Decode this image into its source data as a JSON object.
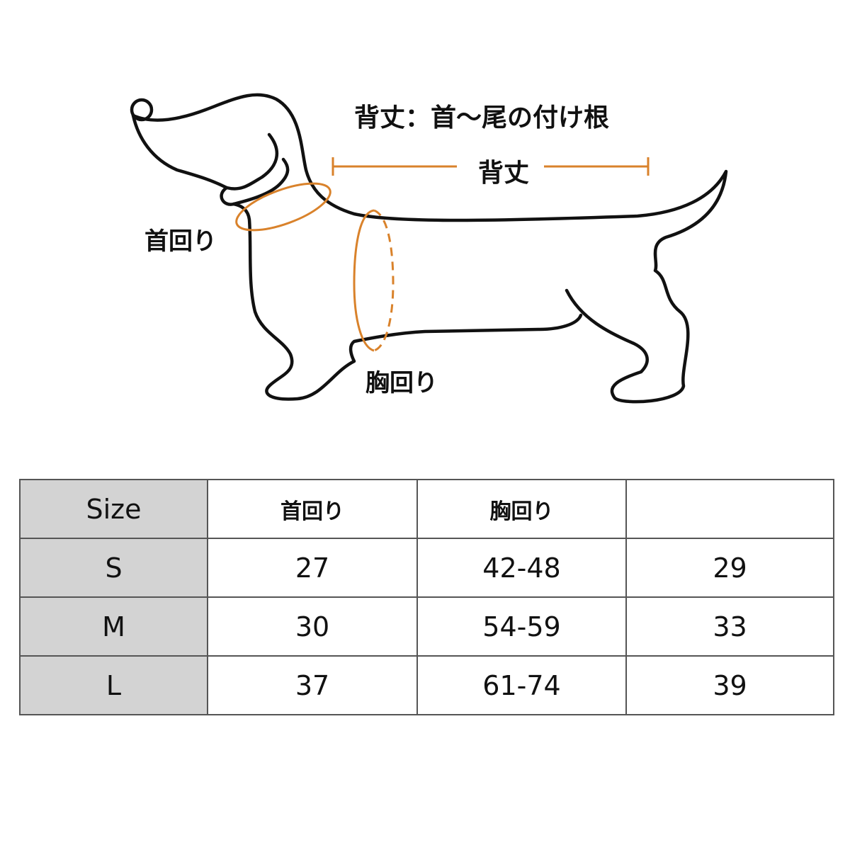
{
  "diagram": {
    "title": "背丈：首〜尾の付け根",
    "back_length_label": "背丈",
    "neck_label": "首回り",
    "chest_label": "胸回り",
    "accent_color": "#d9822b",
    "outline_color": "#111111"
  },
  "table": {
    "headers": [
      "Size",
      "首回り",
      "胸回り",
      ""
    ],
    "rows": [
      {
        "size": "S",
        "neck": "27",
        "chest": "42-48",
        "back": "29"
      },
      {
        "size": "M",
        "neck": "30",
        "chest": "54-59",
        "back": "33"
      },
      {
        "size": "L",
        "neck": "37",
        "chest": "61-74",
        "back": "39"
      }
    ],
    "header_bg": "#d3d3d3"
  }
}
